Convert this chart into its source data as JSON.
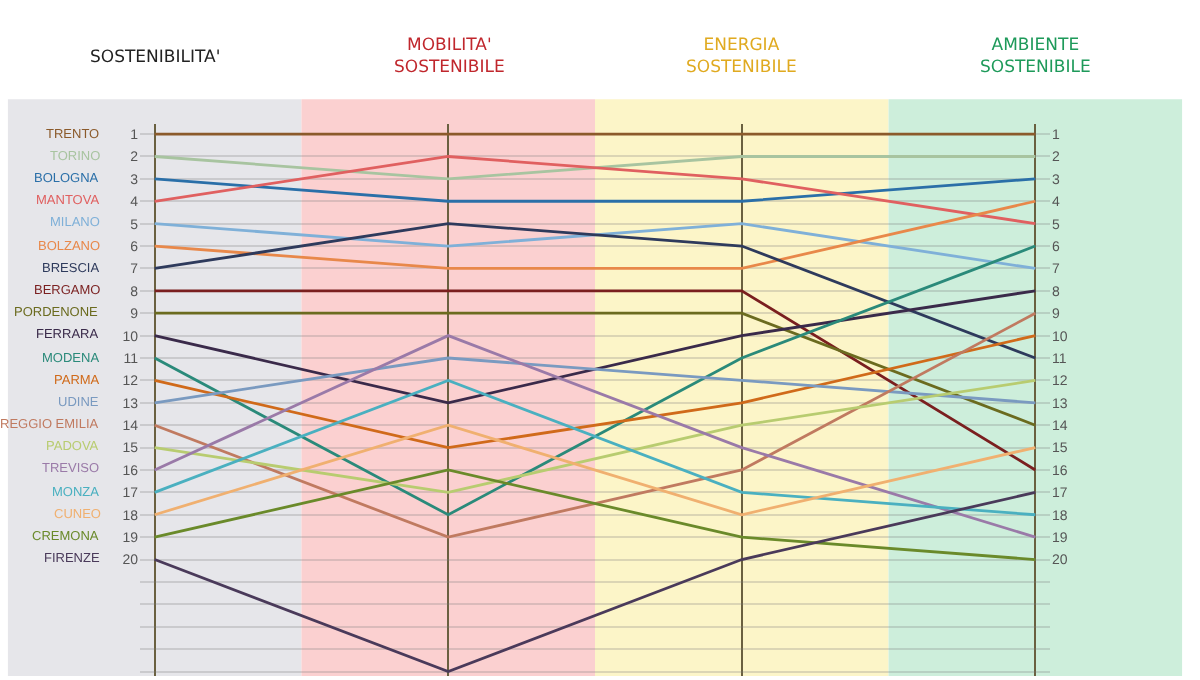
{
  "chart_data": {
    "type": "line",
    "categories": [
      "SOSTENIBILITA'",
      "MOBILITA' SOSTENIBILE",
      "ENERGIA SOSTENIBILE",
      "AMBIENTE SOSTENIBILE"
    ],
    "series": [
      {
        "name": "TRENTO",
        "color": "#8b5a2b",
        "values": [
          1,
          1,
          1,
          1
        ]
      },
      {
        "name": "TORINO",
        "color": "#a8c4a0",
        "values": [
          2,
          3,
          2,
          2
        ]
      },
      {
        "name": "BOLOGNA",
        "color": "#2a6fa8",
        "values": [
          3,
          4,
          4,
          3
        ]
      },
      {
        "name": "MANTOVA",
        "color": "#e06060",
        "values": [
          4,
          2,
          3,
          5
        ]
      },
      {
        "name": "MILANO",
        "color": "#7fb0d8",
        "values": [
          5,
          6,
          5,
          7
        ]
      },
      {
        "name": "BOLZANO",
        "color": "#e8884a",
        "values": [
          6,
          7,
          7,
          4
        ]
      },
      {
        "name": "BRESCIA",
        "color": "#2e3a5c",
        "values": [
          7,
          5,
          6,
          11
        ]
      },
      {
        "name": "BERGAMO",
        "color": "#7a1f1f",
        "values": [
          8,
          8,
          8,
          16
        ]
      },
      {
        "name": "PORDENONE",
        "color": "#6b6b1f",
        "values": [
          9,
          9,
          9,
          14
        ]
      },
      {
        "name": "FERRARA",
        "color": "#3a2a4a",
        "values": [
          10,
          13,
          10,
          8
        ]
      },
      {
        "name": "MODENA",
        "color": "#2a8a7a",
        "values": [
          11,
          18,
          11,
          6
        ]
      },
      {
        "name": "PARMA",
        "color": "#d06a1a",
        "values": [
          12,
          15,
          13,
          10
        ]
      },
      {
        "name": "UDINE",
        "color": "#7a9ac0",
        "values": [
          13,
          11,
          12,
          13
        ]
      },
      {
        "name": "REGGIO EMILIA",
        "color": "#c07a60",
        "values": [
          14,
          19,
          16,
          9
        ]
      },
      {
        "name": "PADOVA",
        "color": "#b8cc70",
        "values": [
          15,
          17,
          14,
          12
        ]
      },
      {
        "name": "TREVISO",
        "color": "#9a7aa8",
        "values": [
          16,
          10,
          15,
          19
        ]
      },
      {
        "name": "MONZA",
        "color": "#4ab0c0",
        "values": [
          17,
          12,
          17,
          18
        ]
      },
      {
        "name": "CUNEO",
        "color": "#f0b070",
        "values": [
          18,
          14,
          18,
          15
        ]
      },
      {
        "name": "CREMONA",
        "color": "#6a8a2a",
        "values": [
          19,
          16,
          19,
          20
        ]
      },
      {
        "name": "FIRENZE",
        "color": "#4a3a5a",
        "values": [
          20,
          25,
          20,
          17
        ]
      }
    ],
    "ylim": [
      25.2,
      0.55
    ],
    "yticks": [
      1,
      2,
      3,
      4,
      5,
      6,
      7,
      8,
      9,
      10,
      11,
      12,
      13,
      14,
      15,
      16,
      17,
      18,
      19,
      20,
      {
        "value": 21,
        "label": null
      },
      {
        "value": 22,
        "label": null
      },
      {
        "value": 23,
        "label": null
      },
      {
        "value": 24,
        "label": null
      },
      {
        "value": 25,
        "label": null
      }
    ],
    "y2lim": [
      25.2,
      0.55
    ],
    "y2ticks": [
      1,
      2,
      3,
      4,
      5,
      6,
      7,
      8,
      9,
      10,
      11,
      12,
      13,
      14,
      15,
      16,
      17,
      18,
      19,
      20
    ],
    "grid": true,
    "marker": "none",
    "bands": [
      {
        "axis": "x",
        "from": "SOSTENIBILITA'",
        "to": "SOSTENIBILITA'",
        "color": "#e6e6ea"
      },
      {
        "axis": "x",
        "from": "MOBILITA' SOSTENIBILE",
        "to": "MOBILITA' SOSTENIBILE",
        "color": "#fbd0d0"
      },
      {
        "axis": "x",
        "from": "ENERGIA SOSTENIBILE",
        "to": "ENERGIA SOSTENIBILE",
        "color": "#fcf5c8"
      },
      {
        "axis": "x",
        "from": "AMBIENTE SOSTENIBILE",
        "to": "AMBIENTE SOSTENIBILE",
        "color": "#cdeedb"
      }
    ]
  }
}
